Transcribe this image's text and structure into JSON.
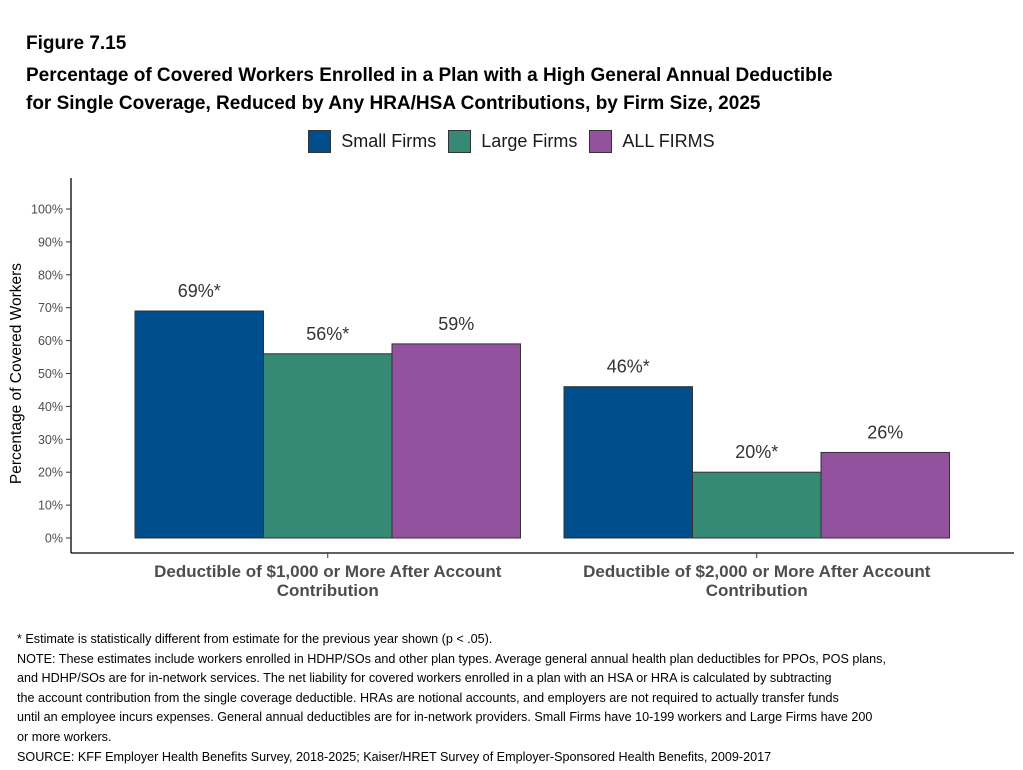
{
  "figure_label": "Figure 7.15",
  "title_lines": [
    "Percentage of Covered Workers Enrolled in a Plan with a High General Annual Deductible",
    "for Single Coverage, Reduced by Any HRA/HSA Contributions, by Firm Size, 2025"
  ],
  "legend": [
    {
      "label": "Small Firms",
      "color": "#004E8C"
    },
    {
      "label": "Large Firms",
      "color": "#368A75"
    },
    {
      "label": "ALL FIRMS",
      "color": "#92529E"
    }
  ],
  "chart_data": {
    "type": "bar",
    "ylabel": "Percentage of Covered Workers",
    "ylim": [
      0,
      100
    ],
    "yticks": [
      "0%",
      "10%",
      "20%",
      "30%",
      "40%",
      "50%",
      "60%",
      "70%",
      "80%",
      "90%",
      "100%"
    ],
    "categories": [
      [
        "Deductible of $1,000 or More After Account",
        "Contribution"
      ],
      [
        "Deductible of $2,000 or More After Account",
        "Contribution"
      ]
    ],
    "series": [
      {
        "name": "Small Firms",
        "color": "#004E8C",
        "values": [
          69,
          46
        ],
        "labels": [
          "69%*",
          "46%*"
        ]
      },
      {
        "name": "Large Firms",
        "color": "#368A75",
        "values": [
          56,
          20
        ],
        "labels": [
          "56%*",
          "20%*"
        ]
      },
      {
        "name": "ALL FIRMS",
        "color": "#92529E",
        "values": [
          59,
          26
        ],
        "labels": [
          "59%",
          "26%"
        ]
      }
    ],
    "grid": false
  },
  "notes": [
    "* Estimate is statistically different from estimate for the previous year shown (p < .05).",
    "NOTE: These estimates include workers enrolled in HDHP/SOs and other plan types. Average general annual health plan deductibles for PPOs, POS plans,",
    "and HDHP/SOs are for in-network services. The net liability for covered workers enrolled in a plan with an HSA or HRA is calculated by subtracting",
    "the account contribution from the single coverage deductible. HRAs are notional accounts, and employers are not required to actually transfer funds",
    "until an employee incurs expenses. General annual deductibles are for in-network providers. Small Firms have 10-199 workers and Large Firms have 200",
    "or more workers.",
    "SOURCE: KFF Employer Health Benefits Survey, 2018-2025; Kaiser/HRET Survey of Employer-Sponsored Health Benefits, 2009-2017"
  ]
}
